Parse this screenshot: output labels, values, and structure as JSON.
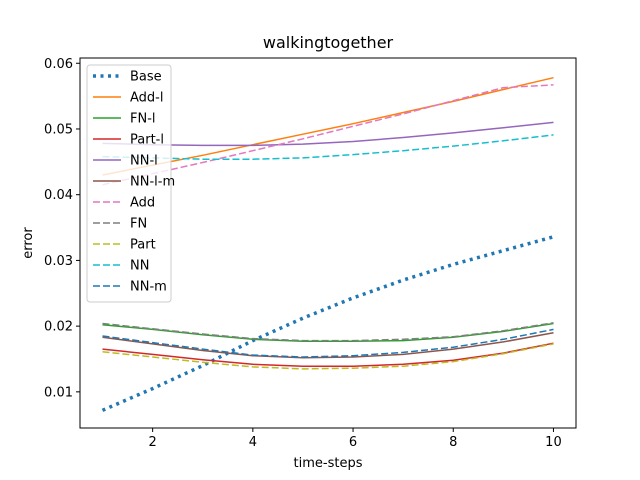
{
  "chart_data": {
    "type": "line",
    "title": "walkingtogether",
    "xlabel": "time-steps",
    "ylabel": "error",
    "xlim": [
      0.55,
      10.45
    ],
    "ylim": [
      0.0045,
      0.0608
    ],
    "xticks": [
      2,
      4,
      6,
      8,
      10
    ],
    "yticks": [
      0.01,
      0.02,
      0.03,
      0.04,
      0.05,
      0.06
    ],
    "xtick_labels": [
      "2",
      "4",
      "6",
      "8",
      "10"
    ],
    "ytick_labels": [
      "0.01",
      "0.02",
      "0.03",
      "0.04",
      "0.05",
      "0.06"
    ],
    "grid": false,
    "legend_position": "top-left",
    "x": [
      1,
      2,
      3,
      4,
      5,
      6,
      7,
      8,
      9,
      10
    ],
    "series": [
      {
        "name": "Base",
        "color": "#1f77b4",
        "style": "dotted-thick",
        "values": [
          0.0072,
          0.0105,
          0.014,
          0.0178,
          0.0212,
          0.0243,
          0.027,
          0.0294,
          0.0315,
          0.0336
        ]
      },
      {
        "name": "Add-l",
        "color": "#ff7f0e",
        "style": "solid",
        "values": [
          0.043,
          0.0445,
          0.046,
          0.0476,
          0.0492,
          0.0508,
          0.0525,
          0.0542,
          0.056,
          0.0578
        ]
      },
      {
        "name": "FN-l",
        "color": "#2ca02c",
        "style": "solid",
        "values": [
          0.0202,
          0.0195,
          0.0187,
          0.018,
          0.0177,
          0.0177,
          0.0178,
          0.0183,
          0.0192,
          0.0204
        ]
      },
      {
        "name": "Part-l",
        "color": "#d62728",
        "style": "solid",
        "values": [
          0.0165,
          0.0157,
          0.0149,
          0.0142,
          0.0139,
          0.0139,
          0.0142,
          0.0148,
          0.0159,
          0.0174
        ]
      },
      {
        "name": "NN-l",
        "color": "#9467bd",
        "style": "solid",
        "values": [
          0.0478,
          0.0476,
          0.0475,
          0.0475,
          0.0477,
          0.0481,
          0.0487,
          0.0494,
          0.0502,
          0.051
        ]
      },
      {
        "name": "NN-l-m",
        "color": "#8c564b",
        "style": "solid",
        "values": [
          0.0183,
          0.0173,
          0.0163,
          0.0155,
          0.0152,
          0.0153,
          0.0157,
          0.0165,
          0.0176,
          0.019
        ]
      },
      {
        "name": "Add",
        "color": "#e377c2",
        "style": "dashed",
        "values": [
          0.0415,
          0.0432,
          0.0449,
          0.0467,
          0.0485,
          0.0504,
          0.0523,
          0.0543,
          0.0563,
          0.0567
        ]
      },
      {
        "name": "FN",
        "color": "#7f7f7f",
        "style": "dashed",
        "values": [
          0.0204,
          0.0196,
          0.0188,
          0.0181,
          0.0178,
          0.0178,
          0.018,
          0.0184,
          0.0193,
          0.0205
        ]
      },
      {
        "name": "Part",
        "color": "#bcbd22",
        "style": "dashed",
        "values": [
          0.0161,
          0.0153,
          0.0145,
          0.0138,
          0.0135,
          0.0136,
          0.0139,
          0.0146,
          0.0158,
          0.0173
        ]
      },
      {
        "name": "NN",
        "color": "#17becf",
        "style": "dashed",
        "values": [
          0.0458,
          0.0456,
          0.0454,
          0.0454,
          0.0456,
          0.0461,
          0.0467,
          0.0474,
          0.0482,
          0.0491
        ]
      },
      {
        "name": "NN-m",
        "color": "#1f77b4",
        "style": "dashed",
        "values": [
          0.0185,
          0.0175,
          0.0165,
          0.0156,
          0.0153,
          0.0155,
          0.016,
          0.0168,
          0.018,
          0.0195
        ]
      }
    ]
  }
}
